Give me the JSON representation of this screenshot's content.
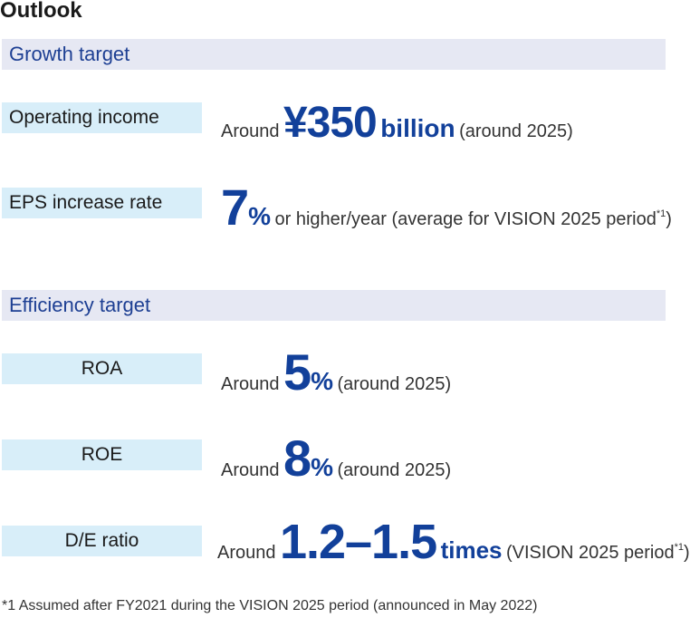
{
  "title": "Outlook",
  "growth": {
    "header": "Growth target",
    "operating_income": {
      "label": "Operating income",
      "prefix": "Around",
      "value": "¥350",
      "unit": "billion",
      "suffix": "(around 2025)"
    },
    "eps": {
      "label": "EPS increase rate",
      "value": "7",
      "unit": "%",
      "suffix": "or higher/year (average for VISION 2025 period",
      "note_mark": "*1",
      "close": ")"
    }
  },
  "efficiency": {
    "header": "Efficiency target",
    "roa": {
      "label": "ROA",
      "prefix": "Around",
      "value": "5",
      "unit": "%",
      "suffix": "(around 2025)"
    },
    "roe": {
      "label": "ROE",
      "prefix": "Around",
      "value": "8",
      "unit": "%",
      "suffix": "(around 2025)"
    },
    "de_ratio": {
      "label": "D/E ratio",
      "prefix": "Around",
      "value": "1.2–1.5",
      "unit": "times",
      "suffix": "(VISION 2025 period",
      "note_mark": "*1",
      "close": ")"
    }
  },
  "footnote": "*1 Assumed after FY2021 during the VISION 2025 period (announced in May 2022)"
}
